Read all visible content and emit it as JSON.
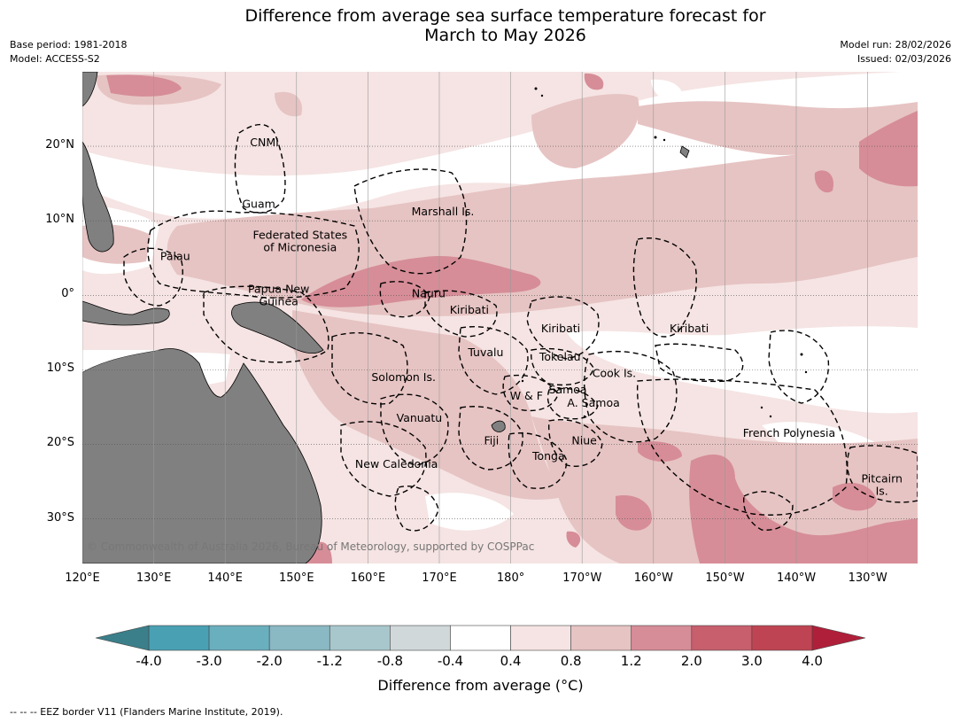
{
  "title": {
    "line1": "Difference from average sea surface temperature forecast for",
    "line2": "March to May 2026"
  },
  "meta_left": {
    "base_period": "Base period: 1981-2018",
    "model": "Model: ACCESS-S2"
  },
  "meta_right": {
    "model_run": "Model run: 28/02/2026",
    "issued": "Issued: 02/03/2026"
  },
  "map": {
    "lon_range": [
      120,
      237
    ],
    "lat_range": [
      -36,
      30
    ],
    "lon_ticks": [
      {
        "lon": 120,
        "label": "120°E"
      },
      {
        "lon": 130,
        "label": "130°E"
      },
      {
        "lon": 140,
        "label": "140°E"
      },
      {
        "lon": 150,
        "label": "150°E"
      },
      {
        "lon": 160,
        "label": "160°E"
      },
      {
        "lon": 170,
        "label": "170°E"
      },
      {
        "lon": 180,
        "label": "180°"
      },
      {
        "lon": 190,
        "label": "170°W"
      },
      {
        "lon": 200,
        "label": "160°W"
      },
      {
        "lon": 210,
        "label": "150°W"
      },
      {
        "lon": 220,
        "label": "140°W"
      },
      {
        "lon": 230,
        "label": "130°W"
      }
    ],
    "lat_ticks": [
      {
        "lat": 20,
        "label": "20°N"
      },
      {
        "lat": 10,
        "label": "10°N"
      },
      {
        "lat": 0,
        "label": "0°"
      },
      {
        "lat": -10,
        "label": "10°S"
      },
      {
        "lat": -20,
        "label": "20°S"
      },
      {
        "lat": -30,
        "label": "30°S"
      }
    ],
    "regions": [
      {
        "lon": 145.5,
        "lat": 20.5,
        "lines": [
          "CNMI"
        ]
      },
      {
        "lon": 144.7,
        "lat": 12.2,
        "lines": [
          "Guam"
        ]
      },
      {
        "lon": 170.5,
        "lat": 11.2,
        "lines": [
          "Marshall Is."
        ]
      },
      {
        "lon": 150.5,
        "lat": 7.2,
        "lines": [
          "Federated States",
          "of Micronesia"
        ]
      },
      {
        "lon": 133,
        "lat": 5.2,
        "lines": [
          "Palau"
        ]
      },
      {
        "lon": 147.5,
        "lat": 0,
        "lines": [
          "Papua New",
          "Guinea"
        ]
      },
      {
        "lon": 168.5,
        "lat": 0.2,
        "lines": [
          "Nauru"
        ]
      },
      {
        "lon": 174.2,
        "lat": -2,
        "lines": [
          "Kiribati"
        ]
      },
      {
        "lon": 187,
        "lat": -4.5,
        "lines": [
          "Kiribati"
        ]
      },
      {
        "lon": 205,
        "lat": -4.5,
        "lines": [
          "Kiribati"
        ]
      },
      {
        "lon": 186.9,
        "lat": -8.3,
        "lines": [
          "Tokelau"
        ]
      },
      {
        "lon": 176.5,
        "lat": -7.7,
        "lines": [
          "Tuvalu"
        ]
      },
      {
        "lon": 194.5,
        "lat": -10.5,
        "lines": [
          "Cook Is."
        ]
      },
      {
        "lon": 165,
        "lat": -11,
        "lines": [
          "Solomon Is."
        ]
      },
      {
        "lon": 188,
        "lat": -12.7,
        "lines": [
          "Samoa"
        ]
      },
      {
        "lon": 182.2,
        "lat": -13.5,
        "lines": [
          "W & F"
        ]
      },
      {
        "lon": 191.6,
        "lat": -14.5,
        "lines": [
          "A. Samoa"
        ]
      },
      {
        "lon": 167.2,
        "lat": -16.5,
        "lines": [
          "Vanuatu"
        ]
      },
      {
        "lon": 219,
        "lat": -18.5,
        "lines": [
          "French Polynesia"
        ]
      },
      {
        "lon": 177.3,
        "lat": -19.5,
        "lines": [
          "Fiji"
        ]
      },
      {
        "lon": 190.3,
        "lat": -19.5,
        "lines": [
          "Niue"
        ]
      },
      {
        "lon": 185.3,
        "lat": -21.6,
        "lines": [
          "Tonga"
        ]
      },
      {
        "lon": 164,
        "lat": -22.7,
        "lines": [
          "New Caledonia"
        ]
      },
      {
        "lon": 232,
        "lat": -25.5,
        "lines": [
          "Pitcairn",
          "Is."
        ]
      }
    ],
    "copyright": "© Commonwealth of Australia 2026, Bureau of Meteorology, supported by COSPPac"
  },
  "colorbar": {
    "boundaries": [
      "-4.0",
      "-3.0",
      "-2.0",
      "-1.2",
      "-0.8",
      "-0.4",
      "0.4",
      "0.8",
      "1.2",
      "2.0",
      "3.0",
      "4.0"
    ],
    "under_color": "#3a7f8a",
    "colors": [
      "#4aa0b3",
      "#6aafbd",
      "#8ab8c3",
      "#a8c7cc",
      "#d1d8d9",
      "#ffffff",
      "#f5e4e3",
      "#e6c4c3",
      "#d68d97",
      "#c75f6d",
      "#bf4453"
    ],
    "over_color": "#b01f3a",
    "title": "Difference from average (°C)"
  },
  "legend_footer": "--  --  -- EEZ border V11 (Flanders Marine Institute, 2019)."
}
